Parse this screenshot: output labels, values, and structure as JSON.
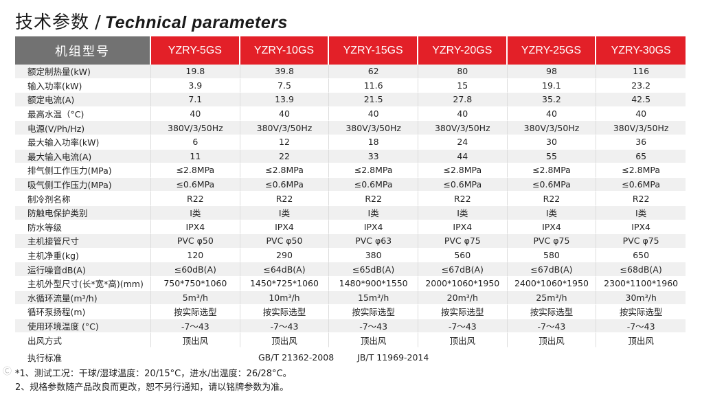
{
  "title": {
    "cn": "技术参数",
    "sep": "/",
    "en": "Technical parameters"
  },
  "header": {
    "first": "机组型号",
    "models": [
      "YZRY-5GS",
      "YZRY-10GS",
      "YZRY-15GS",
      "YZRY-20GS",
      "YZRY-25GS",
      "YZRY-30GS"
    ]
  },
  "rows": [
    {
      "label": "额定制热量(kW)",
      "values": [
        "19.8",
        "39.8",
        "62",
        "80",
        "98",
        "116"
      ]
    },
    {
      "label": "输入功率(kW)",
      "values": [
        "3.9",
        "7.5",
        "11.6",
        "15",
        "19.1",
        "23.2"
      ]
    },
    {
      "label": "额定电流(A)",
      "values": [
        "7.1",
        "13.9",
        "21.5",
        "27.8",
        "35.2",
        "42.5"
      ]
    },
    {
      "label": "最高水温（°C)",
      "values": [
        "40",
        "40",
        "40",
        "40",
        "40",
        "40"
      ]
    },
    {
      "label": "电源(V/Ph/Hz)",
      "values": [
        "380V/3/50Hz",
        "380V/3/50Hz",
        "380V/3/50Hz",
        "380V/3/50Hz",
        "380V/3/50Hz",
        "380V/3/50Hz"
      ]
    },
    {
      "label": "最大输入功率(kW)",
      "values": [
        "6",
        "12",
        "18",
        "24",
        "30",
        "36"
      ]
    },
    {
      "label": "最大输入电流(A)",
      "values": [
        "11",
        "22",
        "33",
        "44",
        "55",
        "65"
      ]
    },
    {
      "label": "排气侧工作压力(MPa)",
      "values": [
        "≤2.8MPa",
        "≤2.8MPa",
        "≤2.8MPa",
        "≤2.8MPa",
        "≤2.8MPa",
        "≤2.8MPa"
      ]
    },
    {
      "label": "吸气侧工作压力(MPa)",
      "values": [
        "≤0.6MPa",
        "≤0.6MPa",
        "≤0.6MPa",
        "≤0.6MPa",
        "≤0.6MPa",
        "≤0.6MPa"
      ]
    },
    {
      "label": "制冷剂名称",
      "values": [
        "R22",
        "R22",
        "R22",
        "R22",
        "R22",
        "R22"
      ]
    },
    {
      "label": "防触电保护类别",
      "values": [
        "I类",
        "I类",
        "I类",
        "I类",
        "I类",
        "I类"
      ]
    },
    {
      "label": " 防水等级",
      "values": [
        "IPX4",
        "IPX4",
        "IPX4",
        "IPX4",
        "IPX4",
        "IPX4"
      ]
    },
    {
      "label": "主机接管尺寸",
      "values": [
        "PVC φ50",
        "PVC φ50",
        "PVC φ63",
        "PVC φ75",
        "PVC φ75",
        "PVC φ75"
      ]
    },
    {
      "label": "主机净重(kg)",
      "values": [
        "120",
        "290",
        "380",
        "560",
        "580",
        "650"
      ]
    },
    {
      "label": "运行噪音dB(A)",
      "values": [
        "≤60dB(A)",
        "≤64dB(A)",
        "≤65dB(A)",
        "≤67dB(A)",
        "≤67dB(A)",
        "≤68dB(A)"
      ]
    },
    {
      "label": "主机外型尺寸(长*宽*高)(mm)",
      "values": [
        "750*750*1060",
        "1450*725*1060",
        "1480*900*1550",
        "2000*1060*1950",
        "2400*1060*1950",
        "2300*1100*1960"
      ]
    },
    {
      "label": "水循环流量(m³/h)",
      "values": [
        "5m³/h",
        "10m³/h",
        "15m³/h",
        "20m³/h",
        "25m³/h",
        "30m³/h"
      ]
    },
    {
      "label": "循环泵扬程(m)",
      "values": [
        "按实际选型",
        "按实际选型",
        "按实际选型",
        "按实际选型",
        "按实际选型",
        "按实际选型"
      ]
    },
    {
      "label": "使用环境温度 (°C)",
      "values": [
        "-7～43",
        "-7～43",
        "-7～43",
        "-7～43",
        "-7～43",
        "-7～43"
      ]
    },
    {
      "label": "出风方式",
      "values": [
        "顶出风",
        "顶出风",
        "顶出风",
        "顶出风",
        "顶出风",
        "顶出风"
      ]
    }
  ],
  "standard": {
    "label": "执行标准",
    "gb": "GB/T 21362-2008",
    "jb": "JB/T 11969-2014"
  },
  "notes": [
    "*1、测试工况：干球/湿球温度：20/15°C，进水/出温度：26/28°C。",
    " 2、规格参数随产品改良而更改，恕不另行通知，请以铭牌参数为准。"
  ],
  "watermark": "Ⓒ"
}
